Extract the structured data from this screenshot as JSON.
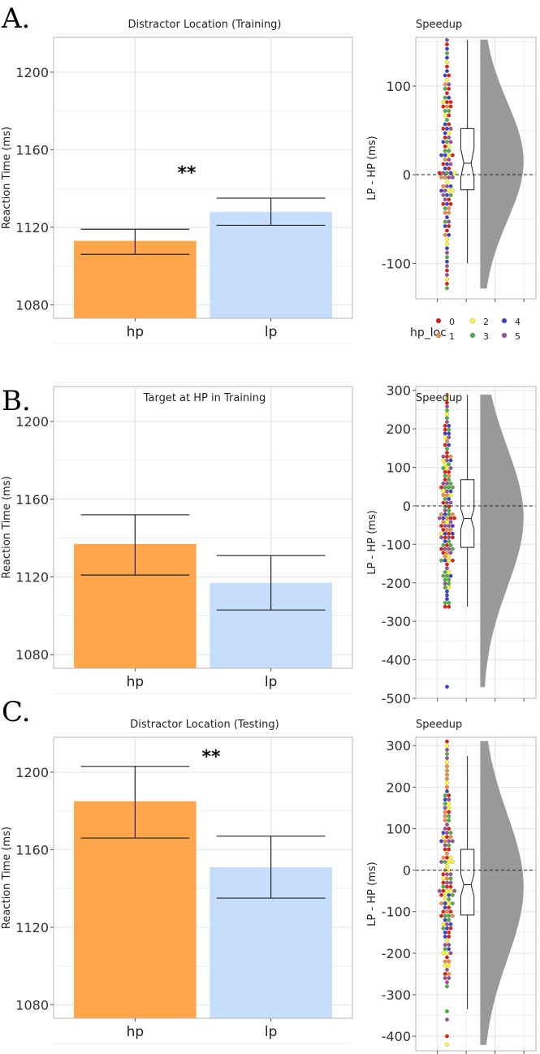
{
  "figure": {
    "legend": {
      "title": "hp_loc",
      "entries": [
        {
          "label": "0",
          "color": "#e41a1c"
        },
        {
          "label": "2",
          "color": "#ffff33"
        },
        {
          "label": "4",
          "color": "#3a3fd0"
        },
        {
          "label": "1",
          "color": "#f28c4a"
        },
        {
          "label": "3",
          "color": "#4daf4a"
        },
        {
          "label": "5",
          "color": "#984ea3"
        }
      ]
    }
  },
  "colors": {
    "hp_bar": "#ffa54a",
    "lp_bar": "#c6ddfb",
    "violin": "#999999",
    "grid": "#e3e3e3",
    "panel_border": "#b5b5b5"
  },
  "chart_data": [
    {
      "panel": "A.",
      "type": "bar",
      "title": "Distractor  Location (Training)",
      "xlabel": "",
      "ylabel": "Reaction Time (ms)",
      "categories": [
        "hp",
        "lp"
      ],
      "values": [
        1113,
        1128
      ],
      "error_low": [
        1106,
        1121
      ],
      "error_high": [
        1119,
        1135
      ],
      "ylim": [
        1073,
        1218
      ],
      "yticks": [
        1080,
        1120,
        1160,
        1200
      ],
      "annotation": "**",
      "annotation_at": [
        1.5,
        1145
      ],
      "grid": true
    },
    {
      "panel": "A.",
      "type": "raincloud",
      "title": "Speedup",
      "ylabel": "LP - HP (ms)",
      "ylim": [
        -140,
        155
      ],
      "yticks": [
        -100,
        0,
        100
      ],
      "box": {
        "q1": -17,
        "median": 13,
        "q3": 52,
        "notch_low": -3,
        "notch_high": 29,
        "whisker_low": -100,
        "whisker_high": 152
      },
      "violin_range": [
        -128,
        152
      ],
      "violin_mode": 15,
      "dot_range": [
        -128,
        152
      ],
      "dot_step": 5,
      "reference_line": 0,
      "grid": true
    },
    {
      "panel": "B.",
      "type": "bar",
      "title": "Target at HP in Training",
      "xlabel": "",
      "ylabel": "Reaction Time (ms)",
      "categories": [
        "hp",
        "lp"
      ],
      "values": [
        1137,
        1117
      ],
      "error_low": [
        1121,
        1103
      ],
      "error_high": [
        1152,
        1131
      ],
      "ylim": [
        1073,
        1218
      ],
      "yticks": [
        1080,
        1120,
        1160,
        1200
      ],
      "grid": true
    },
    {
      "panel": "B.",
      "type": "raincloud",
      "title": "Speedup",
      "ylabel": "LP - HP (ms)",
      "ylim": [
        -500,
        310
      ],
      "yticks": [
        -500,
        -400,
        -300,
        -200,
        -100,
        0,
        100,
        200,
        300
      ],
      "box": {
        "q1": -108,
        "median": -33,
        "q3": 68,
        "notch_low": -60,
        "notch_high": -8,
        "whisker_low": -262,
        "whisker_high": 288
      },
      "violin_range": [
        -470,
        288
      ],
      "violin_mode": -30,
      "dot_range": [
        -262,
        288
      ],
      "dot_step": 10,
      "outliers": [
        -470
      ],
      "reference_line": 0,
      "grid": true
    },
    {
      "panel": "C.",
      "type": "bar",
      "title": "Distractor  Location (Testing)",
      "xlabel": "",
      "ylabel": "Reaction Time (ms)",
      "categories": [
        "hp",
        "lp"
      ],
      "values": [
        1185,
        1151
      ],
      "error_low": [
        1166,
        1135
      ],
      "error_high": [
        1203,
        1167
      ],
      "ylim": [
        1073,
        1218
      ],
      "yticks": [
        1080,
        1120,
        1160,
        1200
      ],
      "annotation": "**",
      "annotation_at": [
        1.5,
        1205
      ],
      "grid": true
    },
    {
      "panel": "C.",
      "type": "raincloud",
      "title": "Speedup",
      "ylabel": "LP - HP (ms)",
      "ylim": [
        -435,
        320
      ],
      "yticks": [
        -400,
        -300,
        -200,
        -100,
        0,
        100,
        200,
        300
      ],
      "box": {
        "q1": -108,
        "median": -35,
        "q3": 50,
        "notch_low": -62,
        "notch_high": -10,
        "whisker_low": -335,
        "whisker_high": 275
      },
      "violin_range": [
        -420,
        310
      ],
      "violin_mode": -40,
      "dot_range": [
        -280,
        310
      ],
      "dot_step": 10,
      "outliers": [
        -340,
        -360,
        -400,
        -420
      ],
      "reference_line": 0,
      "grid": true
    }
  ]
}
